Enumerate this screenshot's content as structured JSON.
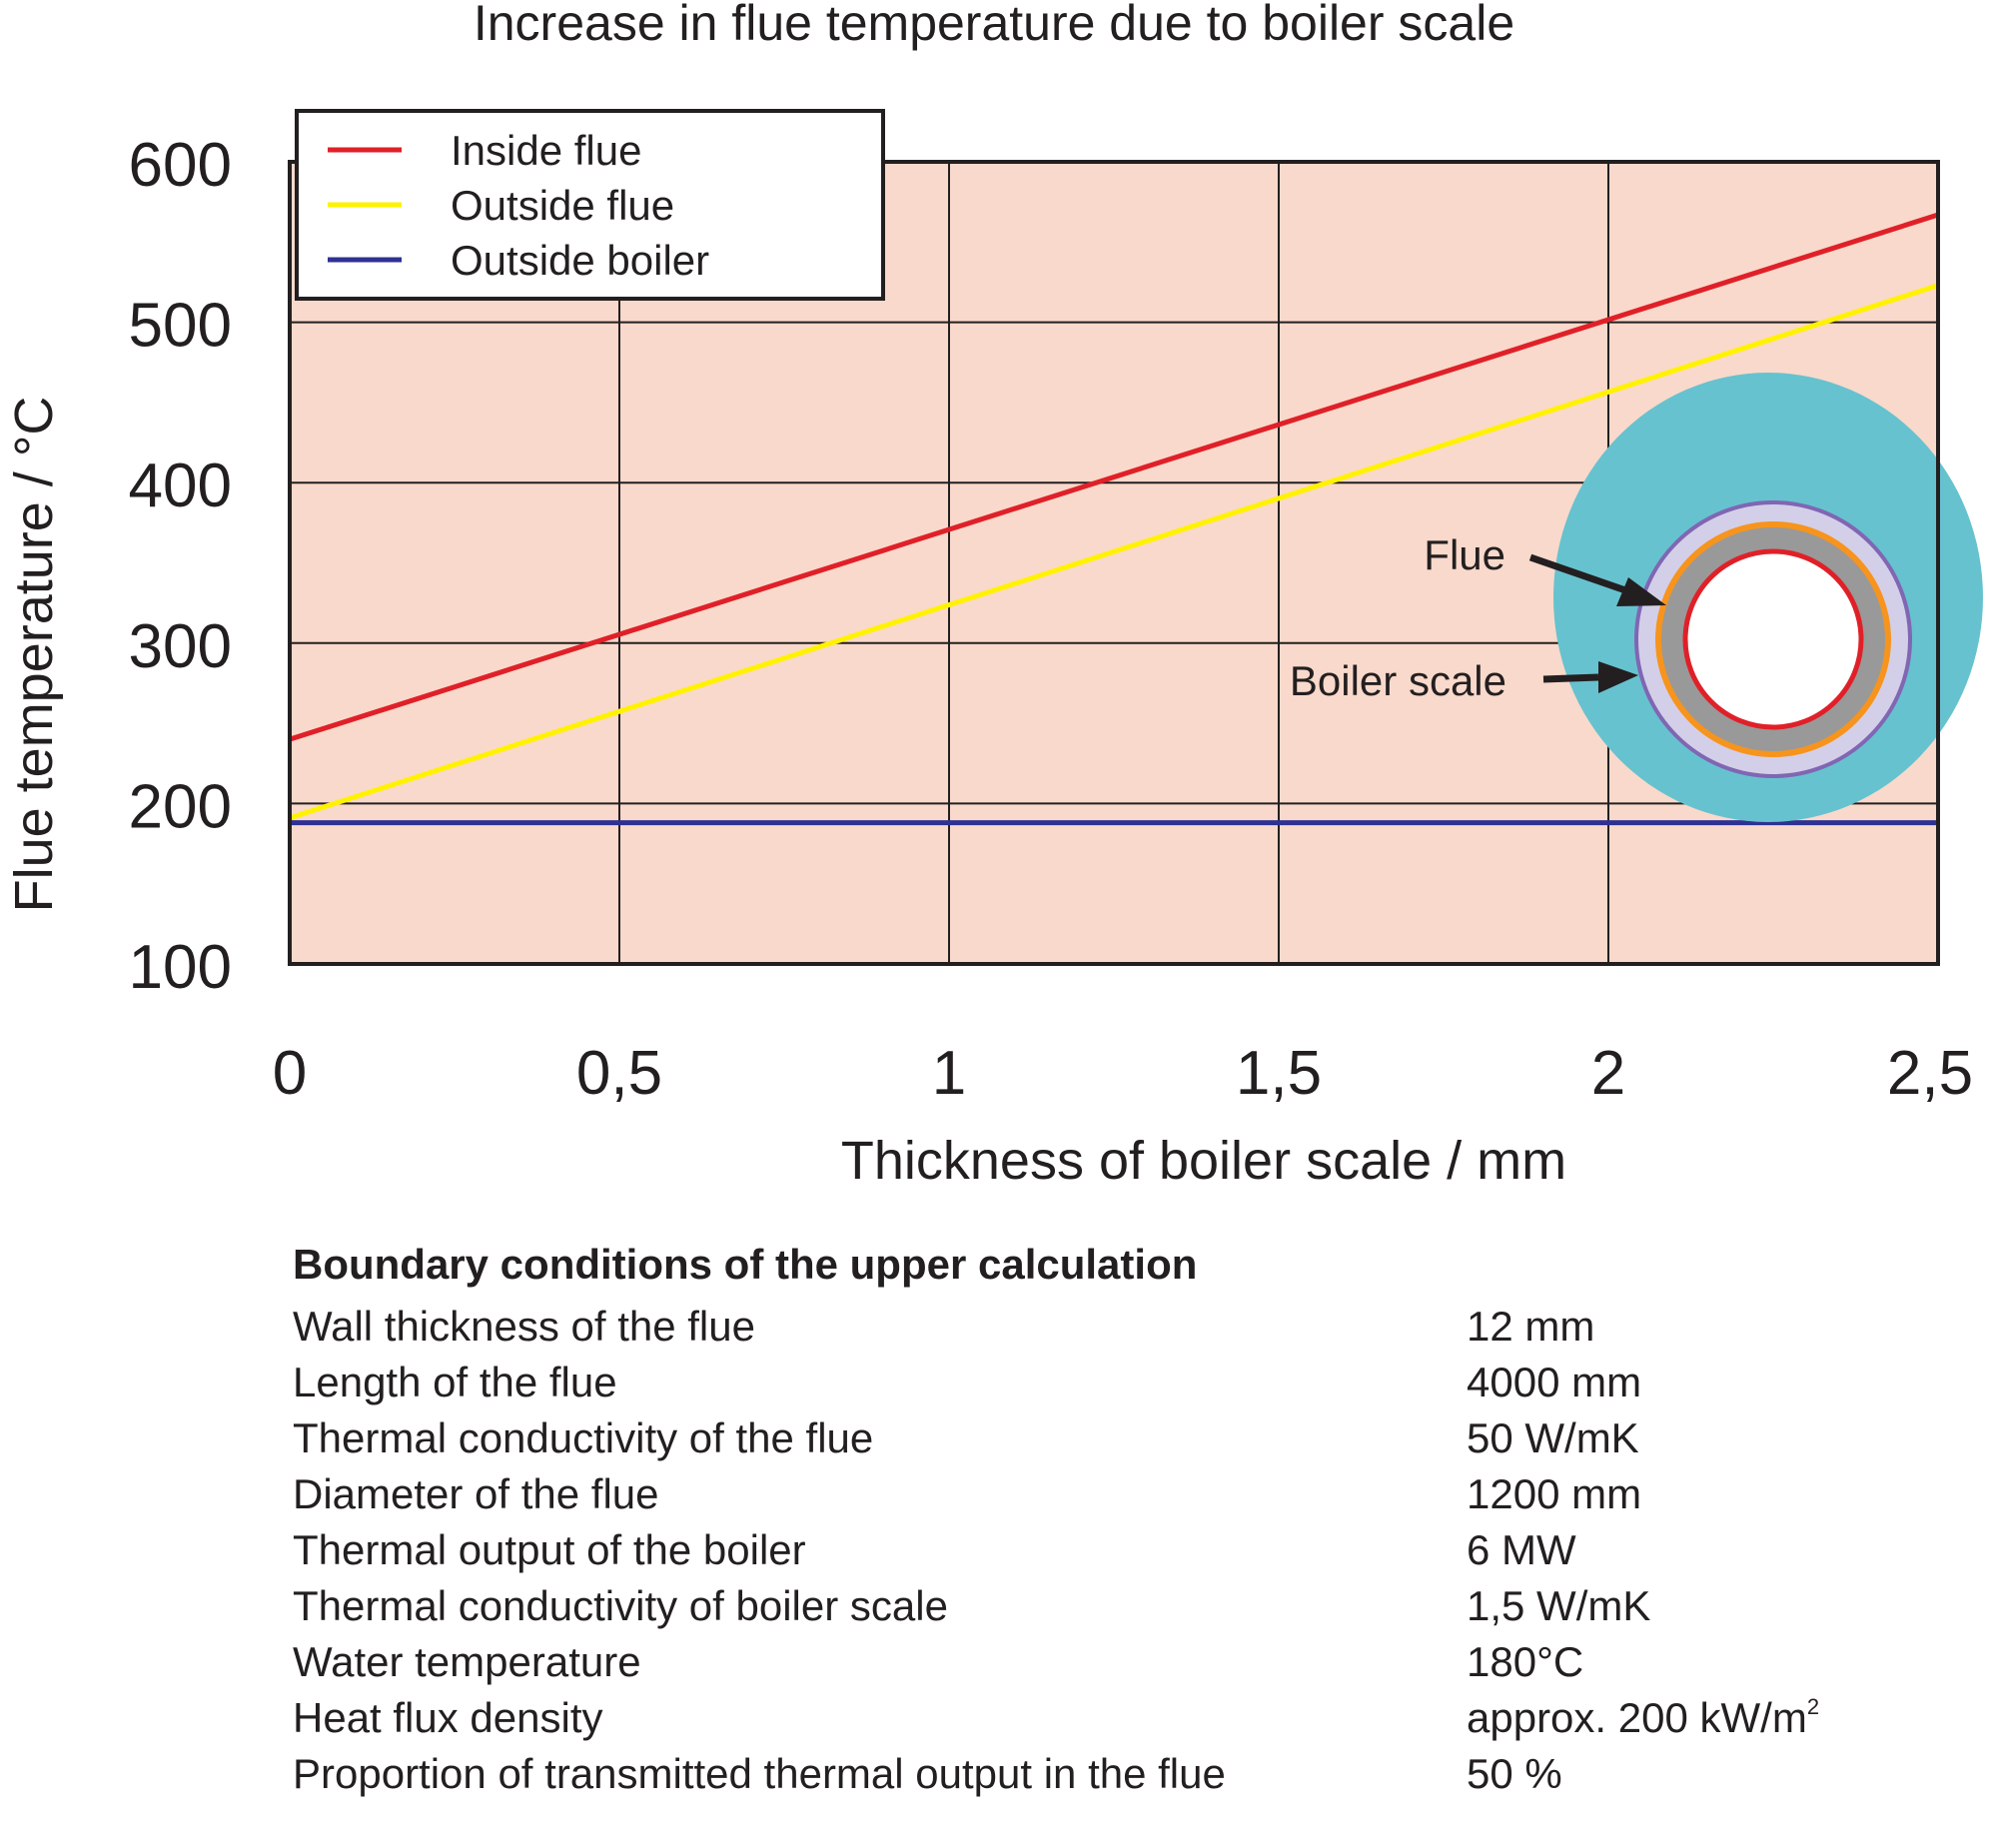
{
  "chart_data": {
    "type": "line",
    "title": "Increase in flue temperature due to boiler scale",
    "xlabel": "Thickness of boiler scale  / mm",
    "ylabel": "Flue temperature / °C",
    "xlim": [
      0,
      2.5
    ],
    "ylim": [
      100,
      600
    ],
    "xticks": [
      0,
      0.5,
      1,
      1.5,
      2,
      2.5
    ],
    "xtick_labels": [
      "0",
      "0,5",
      "1",
      "1,5",
      "2",
      "2,5"
    ],
    "yticks": [
      100,
      200,
      300,
      400,
      500,
      600
    ],
    "ytick_labels": [
      "100",
      "200",
      "300",
      "400",
      "500",
      "600"
    ],
    "grid": true,
    "legend_position": "top-left",
    "background_color": "#f9d9cb",
    "series": [
      {
        "name": "Inside flue",
        "color": "#e02028",
        "x": [
          0,
          2.5
        ],
        "y": [
          240,
          567
        ]
      },
      {
        "name": "Outside flue",
        "color": "#fff200",
        "x": [
          0,
          2.5
        ],
        "y": [
          191,
          523
        ]
      },
      {
        "name": "Outside boiler",
        "color": "#2e3192",
        "x": [
          0,
          2.5
        ],
        "y": [
          188,
          188
        ]
      }
    ],
    "inset": {
      "flue_label": "Flue",
      "scale_label": "Boiler scale",
      "water_color": "#66c2cf",
      "scale_color": "#d3cfe8",
      "scale_outline_color": "#8066b3",
      "flue_wall_color": "#999999",
      "flue_outline_color": "#f7941d",
      "flue_inner_color": "#e02028"
    }
  },
  "boundary_conditions": {
    "heading": "Boundary conditions of the upper calculation",
    "rows": [
      {
        "label": "Wall thickness of the flue",
        "value": "12 mm"
      },
      {
        "label": "Length of the flue",
        "value": "4000 mm"
      },
      {
        "label": "Thermal conductivity of the flue",
        "value": "50 W/mK"
      },
      {
        "label": "Diameter of the flue",
        "value": "1200 mm"
      },
      {
        "label": "Thermal output of the boiler",
        "value": "6 MW"
      },
      {
        "label": "Thermal conductivity of boiler scale",
        "value": "1,5 W/mK"
      },
      {
        "label": "Water temperature",
        "value": "180°C"
      },
      {
        "label": "Heat flux density",
        "value": "approx. 200 kW/m",
        "superscript": "2"
      },
      {
        "label": "Proportion of transmitted thermal output in the flue",
        "value": "50 %"
      }
    ]
  }
}
